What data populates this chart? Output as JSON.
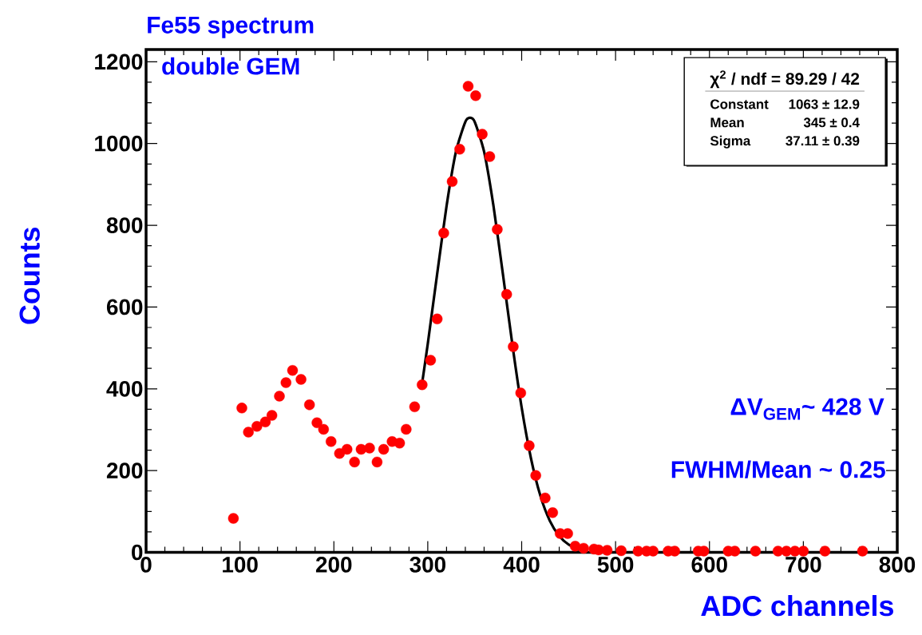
{
  "chart_data": {
    "type": "scatter",
    "title": "Fe55 spectrum",
    "xlabel": "ADC channels",
    "ylabel": "Counts",
    "xlim": [
      0,
      800
    ],
    "ylim": [
      0,
      1230
    ],
    "xticks": [
      0,
      100,
      200,
      300,
      400,
      500,
      600,
      700,
      800
    ],
    "yticks": [
      0,
      200,
      400,
      600,
      800,
      1000,
      1200
    ],
    "grid": false,
    "annotations": [
      "double GEM",
      "χ$^{2}$ / ndf = 89.29 / 42",
      "Constant",
      "1063 ± 12.9",
      "Mean",
      "345 ± 0.4",
      "Sigma",
      "37.11 ± 0.39",
      "ΔV$_{GEM}$~ 428 V",
      "FWHM/Mean ~ 0.25"
    ],
    "series": [
      {
        "marker": "circle",
        "color": "#ff0000",
        "x": [
          93,
          102,
          109,
          118,
          127,
          134,
          142,
          149,
          156,
          165,
          174,
          182,
          189,
          197,
          206,
          214,
          222,
          229,
          238,
          246,
          253,
          262,
          270,
          277,
          286,
          294,
          303,
          310,
          317,
          326,
          334,
          343,
          351,
          358,
          366,
          374,
          384,
          391,
          399,
          408,
          415,
          425,
          433,
          441,
          449,
          457,
          466,
          477,
          482,
          491,
          506,
          524,
          533,
          540,
          556,
          563,
          588,
          594,
          620,
          627,
          649,
          673,
          682,
          691,
          700,
          723,
          763
        ],
        "values": [
          83,
          353,
          294,
          308,
          319,
          335,
          382,
          415,
          445,
          423,
          361,
          317,
          301,
          271,
          242,
          252,
          221,
          252,
          255,
          221,
          252,
          271,
          267,
          301,
          356,
          410,
          470,
          571,
          781,
          907,
          986,
          1140,
          1117,
          1023,
          968,
          790,
          631,
          503,
          390,
          261,
          188,
          133,
          97,
          46,
          46,
          15,
          10,
          8,
          6,
          5,
          4,
          3,
          3,
          3,
          3,
          3,
          3,
          3,
          3,
          3,
          3,
          3,
          3,
          3,
          3,
          3,
          3
        ]
      },
      {
        "type": "line",
        "marker": "none",
        "color": "#000000",
        "x": [
          293,
          300,
          310,
          320,
          330,
          340,
          345,
          350,
          360,
          370,
          380,
          390,
          400,
          410,
          420,
          430,
          440,
          450,
          460,
          465
        ],
        "values": [
          398,
          510,
          681,
          847,
          980,
          1053,
          1063,
          1053,
          980,
          847,
          681,
          510,
          354,
          229,
          138,
          77,
          40,
          19,
          9,
          6
        ]
      }
    ]
  }
}
